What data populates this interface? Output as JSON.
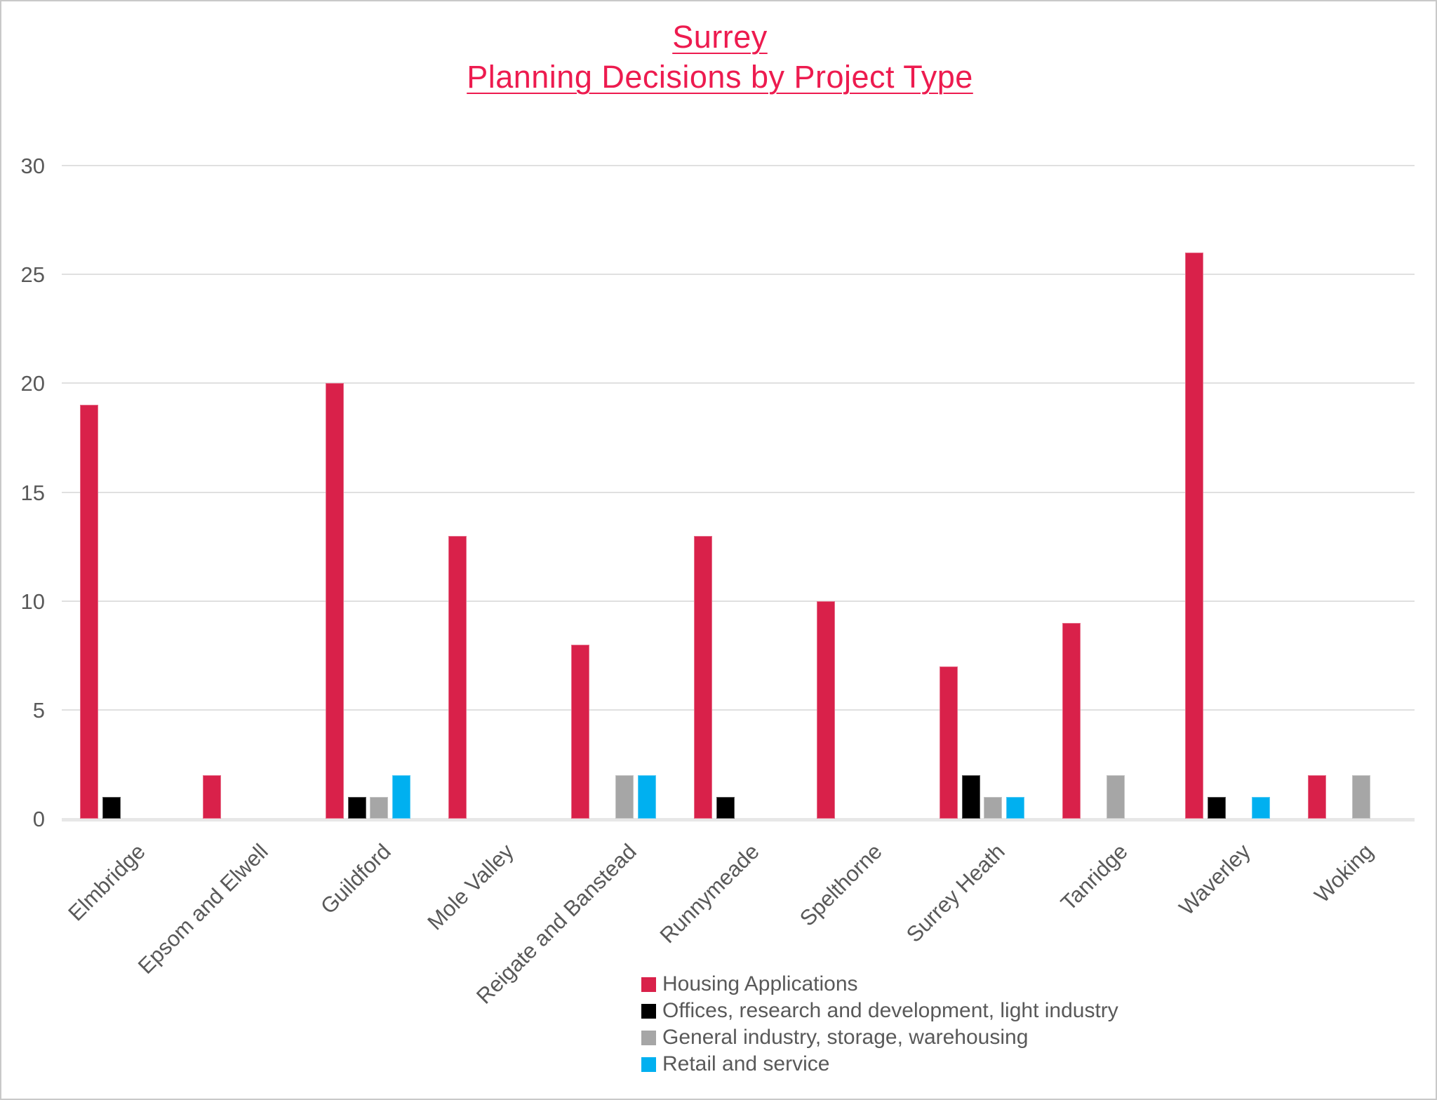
{
  "title": {
    "line1": "Surrey",
    "line2": "Planning Decisions by Project Type",
    "color": "#ed1b4f"
  },
  "chart_data": {
    "type": "bar",
    "title": "Surrey Planning Decisions by Project Type",
    "xlabel": "",
    "ylabel": "",
    "ylim": [
      0,
      30
    ],
    "yticks": [
      0,
      5,
      10,
      15,
      20,
      25,
      30
    ],
    "grid": true,
    "legend_position": "bottom-center",
    "categories": [
      "Elmbridge",
      "Epsom and Elwell",
      "Guildford",
      "Mole Valley",
      "Reigate and Banstead",
      "Runnymeade",
      "Spelthorne",
      "Surrey Heath",
      "Tanridge",
      "Waverley",
      "Woking"
    ],
    "series": [
      {
        "name": "Housing Applications",
        "color": "#d9214a",
        "values": [
          19,
          2,
          20,
          13,
          8,
          13,
          10,
          7,
          9,
          26,
          2
        ]
      },
      {
        "name": "Offices, research and development, light industry",
        "color": "#000000",
        "values": [
          1,
          0,
          1,
          0,
          0,
          1,
          0,
          2,
          0,
          1,
          0
        ]
      },
      {
        "name": "General industry, storage, warehousing",
        "color": "#a6a6a6",
        "values": [
          0,
          0,
          1,
          0,
          2,
          0,
          0,
          1,
          2,
          0,
          2
        ]
      },
      {
        "name": "Retail and service",
        "color": "#00b0f0",
        "values": [
          0,
          0,
          2,
          0,
          2,
          0,
          0,
          1,
          0,
          1,
          0
        ]
      }
    ]
  },
  "axis": {
    "tick_color": "#595959",
    "grid_color": "#e0e0e0"
  }
}
